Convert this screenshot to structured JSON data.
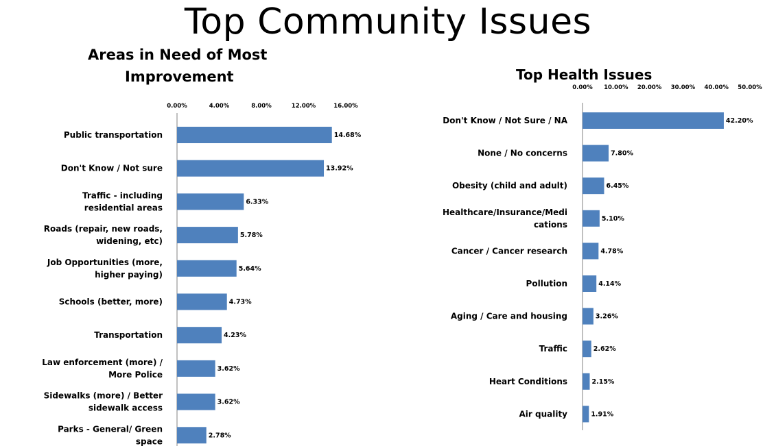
{
  "page": {
    "title": "Top Community Issues"
  },
  "chart_data": [
    {
      "type": "bar",
      "orientation": "horizontal",
      "title_lines": [
        "Areas in Need of Most",
        "Improvement"
      ],
      "categories": [
        [
          "Public transportation"
        ],
        [
          "Don't Know / Not sure"
        ],
        [
          "Traffic - including",
          "residential areas"
        ],
        [
          "Roads (repair, new roads,",
          "widening, etc)"
        ],
        [
          "Job Opportunities (more,",
          "higher paying)"
        ],
        [
          "Schools (better, more)"
        ],
        [
          "Transportation"
        ],
        [
          "Law enforcement (more) /",
          "More Police"
        ],
        [
          "Sidewalks (more) / Better",
          "sidewalk access"
        ],
        [
          "Parks - General/ Green",
          "space"
        ]
      ],
      "values": [
        14.68,
        13.92,
        6.33,
        5.78,
        5.64,
        4.73,
        4.23,
        3.62,
        3.62,
        2.78
      ],
      "value_labels": [
        "14.68%",
        "13.92%",
        "6.33%",
        "5.78%",
        "5.64%",
        "4.73%",
        "4.23%",
        "3.62%",
        "3.62%",
        "2.78%"
      ],
      "xlim": [
        0,
        16
      ],
      "ticks": [
        0,
        4,
        8,
        12,
        16
      ],
      "tick_labels": [
        "0.00%",
        "4.00%",
        "8.00%",
        "12.00%",
        "16.00%"
      ],
      "axis_position": "top",
      "color": "#4f81bd"
    },
    {
      "type": "bar",
      "orientation": "horizontal",
      "title_lines": [
        "Top Health Issues"
      ],
      "categories": [
        [
          "Don't Know / Not Sure / NA"
        ],
        [
          "None / No concerns"
        ],
        [
          "Obesity (child and adult)"
        ],
        [
          "Healthcare/Insurance/Medi",
          "cations"
        ],
        [
          "Cancer / Cancer research"
        ],
        [
          "Pollution"
        ],
        [
          "Aging / Care and housing"
        ],
        [
          "Traffic"
        ],
        [
          "Heart Conditions"
        ],
        [
          "Air quality"
        ]
      ],
      "values": [
        42.2,
        7.8,
        6.45,
        5.1,
        4.78,
        4.14,
        3.26,
        2.62,
        2.15,
        1.91
      ],
      "value_labels": [
        "42.20%",
        "7.80%",
        "6.45%",
        "5.10%",
        "4.78%",
        "4.14%",
        "3.26%",
        "2.62%",
        "2.15%",
        "1.91%"
      ],
      "xlim": [
        0,
        50
      ],
      "ticks": [
        0,
        10,
        20,
        30,
        40,
        50
      ],
      "tick_labels": [
        "0.00%",
        "10.00%",
        "20.00%",
        "30.00%",
        "40.00%",
        "50.00%"
      ],
      "axis_position": "top",
      "color": "#4f81bd"
    }
  ]
}
